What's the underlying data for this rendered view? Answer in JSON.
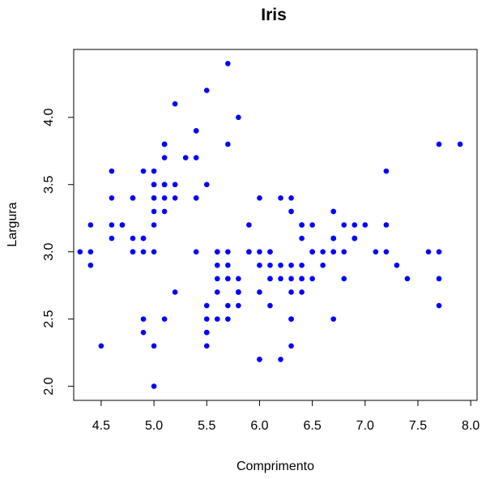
{
  "chart_data": {
    "type": "scatter",
    "title": "Iris",
    "xlabel": "Comprimento",
    "ylabel": "Largura",
    "xlim": [
      4.24,
      8.06
    ],
    "ylim": [
      1.895,
      4.505
    ],
    "xticks": [
      4.5,
      5.0,
      5.5,
      6.0,
      6.5,
      7.0,
      7.5,
      8.0
    ],
    "yticks": [
      2.0,
      2.5,
      3.0,
      3.5,
      4.0
    ],
    "xtick_labels": [
      "4.5",
      "5.0",
      "5.5",
      "6.0",
      "6.5",
      "7.0",
      "7.5",
      "8.0"
    ],
    "ytick_labels": [
      "2.0",
      "2.5",
      "3.0",
      "3.5",
      "4.0"
    ],
    "grid": false,
    "point_color": "#0000ff",
    "points": [
      [
        5.1,
        3.5
      ],
      [
        4.9,
        3.0
      ],
      [
        4.7,
        3.2
      ],
      [
        4.6,
        3.1
      ],
      [
        5.0,
        3.6
      ],
      [
        5.4,
        3.9
      ],
      [
        4.6,
        3.4
      ],
      [
        5.0,
        3.4
      ],
      [
        4.4,
        2.9
      ],
      [
        4.9,
        3.1
      ],
      [
        5.4,
        3.7
      ],
      [
        4.8,
        3.4
      ],
      [
        4.8,
        3.0
      ],
      [
        4.3,
        3.0
      ],
      [
        5.8,
        4.0
      ],
      [
        5.7,
        4.4
      ],
      [
        5.4,
        3.9
      ],
      [
        5.1,
        3.5
      ],
      [
        5.7,
        3.8
      ],
      [
        5.1,
        3.8
      ],
      [
        5.4,
        3.4
      ],
      [
        5.1,
        3.7
      ],
      [
        4.6,
        3.6
      ],
      [
        5.1,
        3.3
      ],
      [
        4.8,
        3.4
      ],
      [
        5.0,
        3.0
      ],
      [
        5.0,
        3.4
      ],
      [
        5.2,
        3.5
      ],
      [
        5.2,
        3.4
      ],
      [
        4.7,
        3.2
      ],
      [
        4.8,
        3.1
      ],
      [
        5.4,
        3.4
      ],
      [
        5.2,
        4.1
      ],
      [
        5.5,
        4.2
      ],
      [
        4.9,
        3.1
      ],
      [
        5.0,
        3.2
      ],
      [
        5.5,
        3.5
      ],
      [
        4.9,
        3.6
      ],
      [
        4.4,
        3.0
      ],
      [
        5.1,
        3.4
      ],
      [
        5.0,
        3.5
      ],
      [
        4.5,
        2.3
      ],
      [
        4.4,
        3.2
      ],
      [
        5.0,
        3.5
      ],
      [
        5.1,
        3.8
      ],
      [
        4.8,
        3.0
      ],
      [
        5.1,
        3.8
      ],
      [
        4.6,
        3.2
      ],
      [
        5.3,
        3.7
      ],
      [
        5.0,
        3.3
      ],
      [
        7.0,
        3.2
      ],
      [
        6.4,
        3.2
      ],
      [
        6.9,
        3.1
      ],
      [
        5.5,
        2.3
      ],
      [
        6.5,
        2.8
      ],
      [
        5.7,
        2.8
      ],
      [
        6.3,
        3.3
      ],
      [
        4.9,
        2.4
      ],
      [
        6.6,
        2.9
      ],
      [
        5.2,
        2.7
      ],
      [
        5.0,
        2.0
      ],
      [
        5.9,
        3.0
      ],
      [
        6.0,
        2.2
      ],
      [
        6.1,
        2.9
      ],
      [
        5.6,
        2.9
      ],
      [
        6.7,
        3.1
      ],
      [
        5.6,
        3.0
      ],
      [
        5.8,
        2.7
      ],
      [
        6.2,
        2.2
      ],
      [
        5.6,
        2.5
      ],
      [
        5.9,
        3.2
      ],
      [
        6.1,
        2.8
      ],
      [
        6.3,
        2.5
      ],
      [
        6.1,
        2.8
      ],
      [
        6.4,
        2.9
      ],
      [
        6.6,
        3.0
      ],
      [
        6.8,
        2.8
      ],
      [
        6.7,
        3.0
      ],
      [
        6.0,
        2.9
      ],
      [
        5.7,
        2.6
      ],
      [
        5.5,
        2.4
      ],
      [
        5.5,
        2.4
      ],
      [
        5.8,
        2.7
      ],
      [
        6.0,
        2.7
      ],
      [
        5.4,
        3.0
      ],
      [
        6.0,
        3.4
      ],
      [
        6.7,
        3.1
      ],
      [
        6.3,
        2.3
      ],
      [
        5.6,
        3.0
      ],
      [
        5.5,
        2.5
      ],
      [
        5.5,
        2.6
      ],
      [
        6.1,
        3.0
      ],
      [
        5.8,
        2.6
      ],
      [
        5.0,
        2.3
      ],
      [
        5.6,
        2.7
      ],
      [
        5.7,
        3.0
      ],
      [
        5.7,
        2.9
      ],
      [
        6.2,
        2.9
      ],
      [
        5.1,
        2.5
      ],
      [
        5.7,
        2.8
      ],
      [
        6.3,
        3.3
      ],
      [
        5.8,
        2.7
      ],
      [
        7.1,
        3.0
      ],
      [
        6.3,
        2.9
      ],
      [
        6.5,
        3.0
      ],
      [
        7.6,
        3.0
      ],
      [
        4.9,
        2.5
      ],
      [
        7.3,
        2.9
      ],
      [
        6.7,
        2.5
      ],
      [
        7.2,
        3.6
      ],
      [
        6.5,
        3.2
      ],
      [
        6.4,
        2.7
      ],
      [
        6.8,
        3.0
      ],
      [
        5.7,
        2.5
      ],
      [
        5.8,
        2.8
      ],
      [
        6.4,
        3.2
      ],
      [
        6.5,
        3.0
      ],
      [
        7.7,
        3.8
      ],
      [
        7.7,
        2.6
      ],
      [
        6.0,
        2.2
      ],
      [
        6.9,
        3.2
      ],
      [
        5.6,
        2.8
      ],
      [
        7.7,
        2.8
      ],
      [
        6.3,
        2.7
      ],
      [
        6.7,
        3.3
      ],
      [
        7.2,
        3.2
      ],
      [
        6.2,
        2.8
      ],
      [
        6.1,
        3.0
      ],
      [
        6.4,
        2.8
      ],
      [
        7.2,
        3.0
      ],
      [
        7.4,
        2.8
      ],
      [
        7.9,
        3.8
      ],
      [
        6.4,
        2.8
      ],
      [
        6.3,
        2.8
      ],
      [
        6.1,
        2.6
      ],
      [
        7.7,
        3.0
      ],
      [
        6.3,
        3.4
      ],
      [
        6.4,
        3.1
      ],
      [
        6.0,
        3.0
      ],
      [
        6.9,
        3.1
      ],
      [
        6.7,
        3.1
      ],
      [
        6.9,
        3.1
      ],
      [
        5.8,
        2.7
      ],
      [
        6.8,
        3.2
      ],
      [
        6.7,
        3.3
      ],
      [
        6.7,
        3.0
      ],
      [
        6.3,
        2.5
      ],
      [
        6.5,
        3.0
      ],
      [
        6.2,
        3.4
      ],
      [
        5.9,
        3.0
      ]
    ]
  }
}
